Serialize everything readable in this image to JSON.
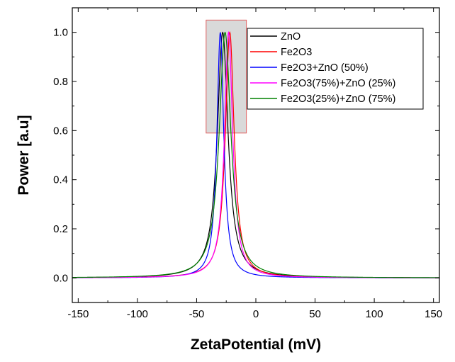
{
  "chart_data": {
    "type": "line",
    "xlabel": "ZetaPotential (mV)",
    "ylabel": "Power [a.u]",
    "xlim": [
      -155,
      155
    ],
    "ylim": [
      -0.1,
      1.1
    ],
    "xticks": [
      -150,
      -100,
      -50,
      0,
      50,
      100,
      150
    ],
    "yticks": [
      0.0,
      0.2,
      0.4,
      0.6,
      0.8,
      1.0
    ],
    "xtick_labels": [
      "-150",
      "-100",
      "-50",
      "0",
      "50",
      "100",
      "150"
    ],
    "ytick_labels": [
      "0.0",
      "0.2",
      "0.4",
      "0.6",
      "0.8",
      "1.0"
    ],
    "grid": false,
    "legend_position": "top-center",
    "inset_highlight": {
      "x_range": [
        -42,
        -8
      ],
      "y_range": [
        0.59,
        1.05
      ]
    },
    "series": [
      {
        "name": "ZnO",
        "color": "#000000",
        "peak_x": -28,
        "hwhm": 5.5,
        "peak_y": 1.0
      },
      {
        "name": "Fe2O3",
        "color": "#ff0000",
        "peak_x": -22,
        "hwhm": 4.5,
        "peak_y": 1.0
      },
      {
        "name": "Fe2O3+ZnO (50%)",
        "color": "#0000ff",
        "peak_x": -30,
        "hwhm": 3.5,
        "peak_y": 1.0
      },
      {
        "name": "Fe2O3(75%)+ZnO (25%)",
        "color": "#ff00ff",
        "peak_x": -23,
        "hwhm": 4.2,
        "peak_y": 1.0
      },
      {
        "name": "Fe2O3(25%)+ZnO (75%)",
        "color": "#008000",
        "peak_x": -26,
        "hwhm": 6.0,
        "peak_y": 1.0
      }
    ]
  }
}
